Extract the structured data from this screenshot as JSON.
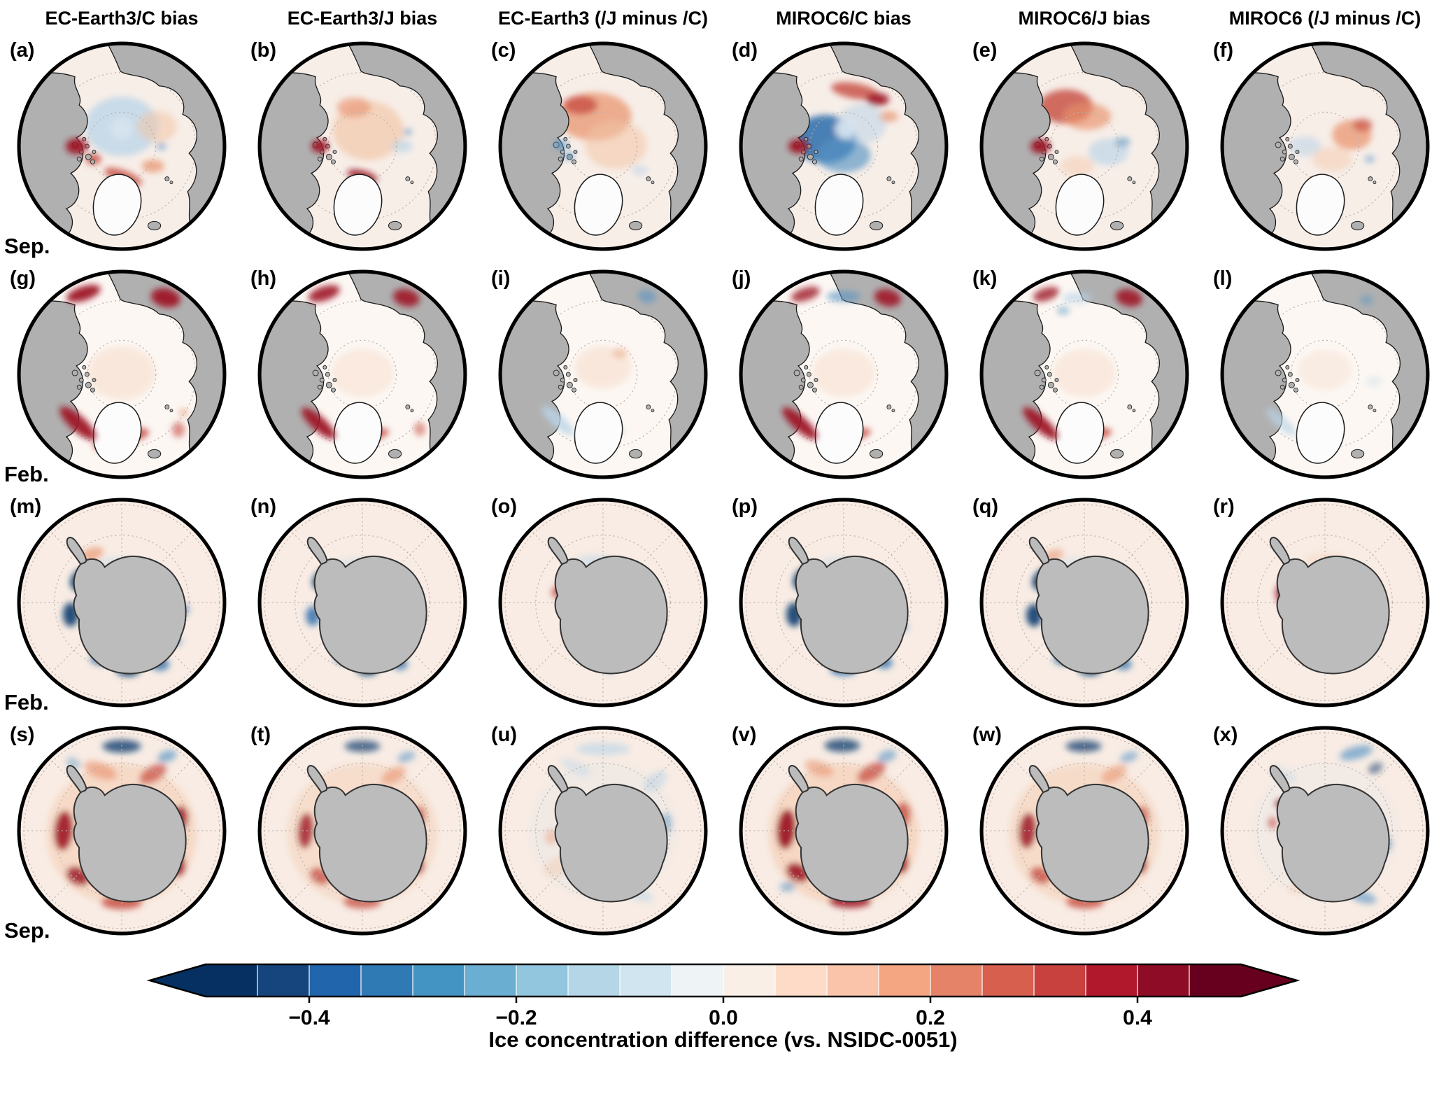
{
  "figure": {
    "column_headers": [
      "EC-Earth3/C bias",
      "EC-Earth3/J bias",
      "EC-Earth3 (/J minus /C)",
      "MIROC6/C bias",
      "MIROC6/J bias",
      "MIROC6 (/J minus /C)"
    ],
    "rows": [
      {
        "label": "Sep.",
        "hemisphere": "Arctic"
      },
      {
        "label": "Feb.",
        "hemisphere": "Arctic"
      },
      {
        "label": "Feb.",
        "hemisphere": "Antarctic"
      },
      {
        "label": "Sep.",
        "hemisphere": "Antarctic"
      }
    ],
    "panel_labels": [
      "(a)",
      "(b)",
      "(c)",
      "(d)",
      "(e)",
      "(f)",
      "(g)",
      "(h)",
      "(i)",
      "(j)",
      "(k)",
      "(l)",
      "(m)",
      "(n)",
      "(o)",
      "(p)",
      "(q)",
      "(r)",
      "(s)",
      "(t)",
      "(u)",
      "(v)",
      "(w)",
      "(x)"
    ]
  },
  "colorbar": {
    "label": "Ice concentration difference (vs. NSIDC-0051)",
    "range": [
      -0.5,
      0.5
    ],
    "ticks": [
      {
        "value": -0.4,
        "label": "−0.4"
      },
      {
        "value": -0.2,
        "label": "−0.2"
      },
      {
        "value": 0.0,
        "label": "0.0"
      },
      {
        "value": 0.2,
        "label": "0.2"
      },
      {
        "value": 0.4,
        "label": "0.4"
      }
    ],
    "colors": [
      "#053061",
      "#15457c",
      "#2166ac",
      "#2f79b5",
      "#4393c3",
      "#6aaed1",
      "#92c5de",
      "#b4d6e6",
      "#d1e5f0",
      "#eef3f6",
      "#faefe7",
      "#fddbc7",
      "#f9c4aa",
      "#f4a582",
      "#e58368",
      "#d6604d",
      "#c8413e",
      "#b2182b",
      "#8e0c25",
      "#67001f"
    ],
    "arrow_colors": [
      "#053061",
      "#67001f"
    ]
  },
  "chart_data": {
    "type": "heatmap",
    "layout": "6x4 grid of circular polar-stereographic maps",
    "columns": [
      "EC-Earth3/C bias",
      "EC-Earth3/J bias",
      "EC-Earth3 (/J minus /C)",
      "MIROC6/C bias",
      "MIROC6/J bias",
      "MIROC6 (/J minus /C)"
    ],
    "rows": [
      {
        "label": "Sep.",
        "hemisphere": "Arctic",
        "panels": [
          "(a)",
          "(b)",
          "(c)",
          "(d)",
          "(e)",
          "(f)"
        ]
      },
      {
        "label": "Feb.",
        "hemisphere": "Arctic",
        "panels": [
          "(g)",
          "(h)",
          "(i)",
          "(j)",
          "(k)",
          "(l)"
        ]
      },
      {
        "label": "Feb.",
        "hemisphere": "Antarctic",
        "panels": [
          "(m)",
          "(n)",
          "(o)",
          "(p)",
          "(q)",
          "(r)"
        ]
      },
      {
        "label": "Sep.",
        "hemisphere": "Antarctic",
        "panels": [
          "(s)",
          "(t)",
          "(u)",
          "(v)",
          "(w)",
          "(x)"
        ]
      }
    ],
    "colorbar": {
      "label": "Ice concentration difference (vs. NSIDC-0051)",
      "ticks": [
        -0.4,
        -0.2,
        0.0,
        0.2,
        0.4
      ],
      "range_shown": [
        -0.5,
        0.5
      ],
      "extended_arrows": true
    }
  }
}
